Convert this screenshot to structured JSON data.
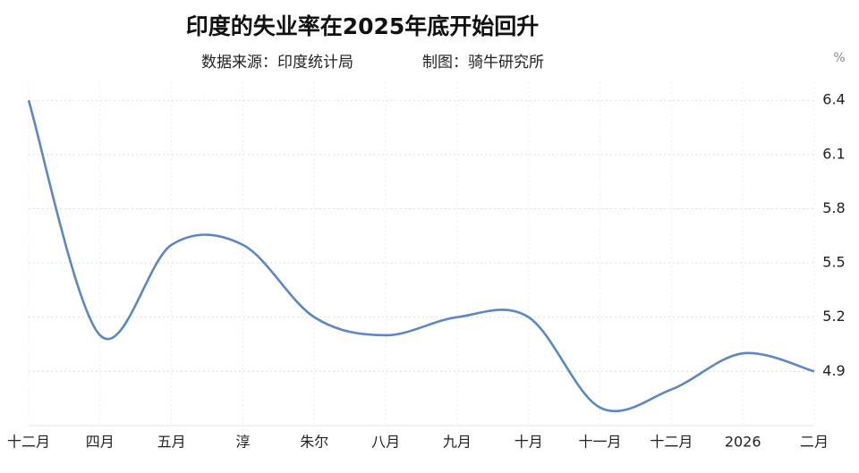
{
  "chart_data": {
    "type": "line",
    "title": "印度的失业率在2025年底开始回升",
    "subtitle": [
      "数据来源：印度统计局",
      "制图：骑牛研究所"
    ],
    "y_unit": "%",
    "categories": [
      "十二月",
      "四月",
      "五月",
      "淳",
      "朱尔",
      "八月",
      "九月",
      "十月",
      "十一月",
      "十二月",
      "2026",
      "二月"
    ],
    "series": [
      {
        "name": "失业率",
        "color": "#5b87c5",
        "values": [
          6.4,
          5.1,
          5.6,
          5.6,
          5.2,
          5.1,
          5.2,
          5.2,
          4.7,
          4.8,
          5.0,
          4.9
        ]
      }
    ],
    "ylim": [
      4.6,
      6.5
    ],
    "yticks": [
      4.9,
      5.2,
      5.5,
      5.8,
      6.1,
      6.4
    ],
    "grid": true,
    "smooth": true
  }
}
